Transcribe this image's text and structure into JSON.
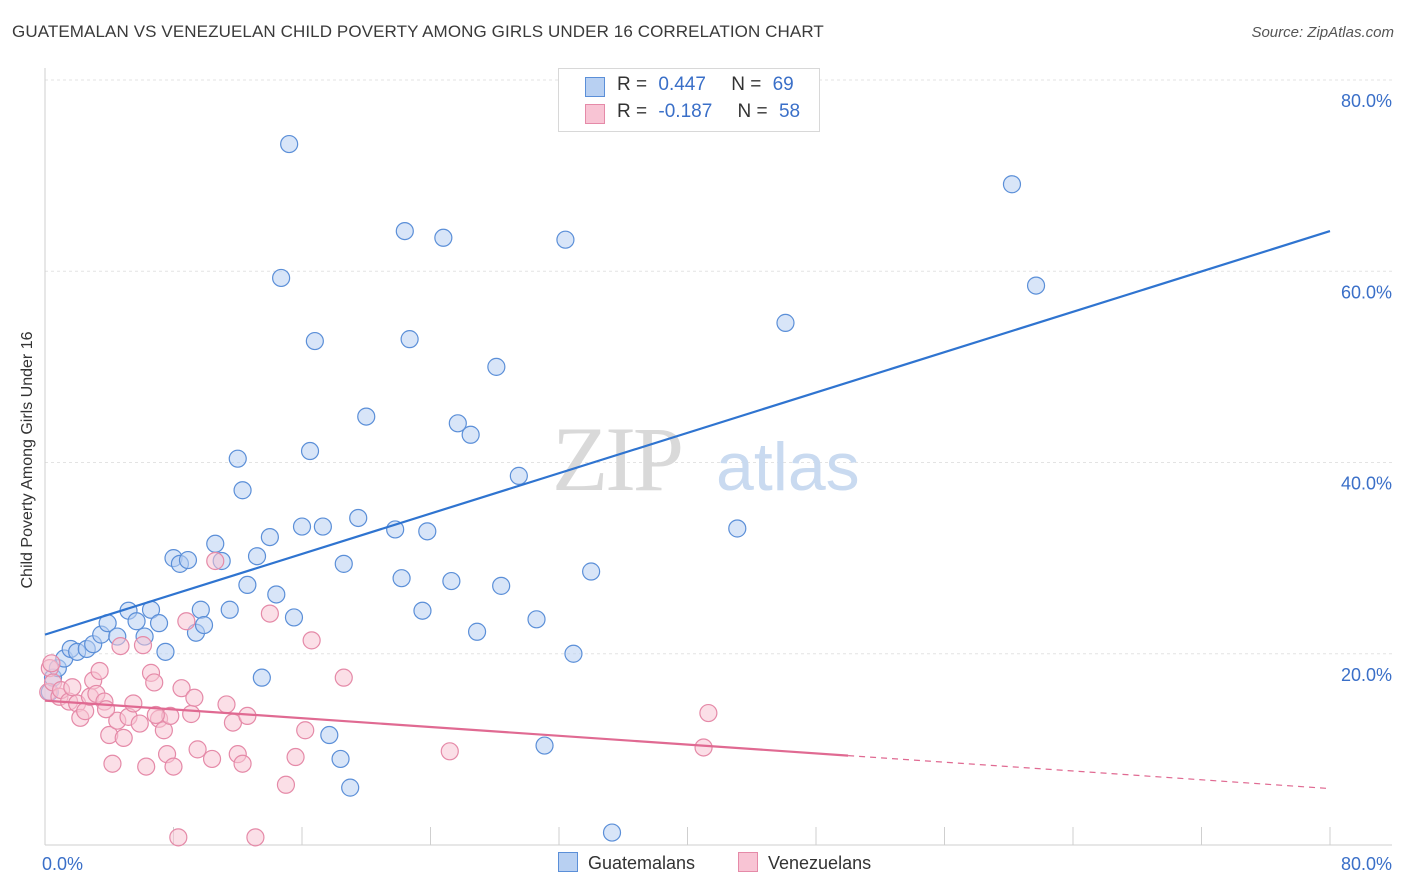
{
  "title": "GUATEMALAN VS VENEZUELAN CHILD POVERTY AMONG GIRLS UNDER 16 CORRELATION CHART",
  "source": "Source: ZipAtlas.com",
  "watermark": {
    "zip": "ZIP",
    "atlas": "atlas"
  },
  "colors": {
    "blue_fill": "#b8d0f2",
    "blue_stroke": "#5b8fd8",
    "blue_line": "#2f74d0",
    "pink_fill": "#f8c4d4",
    "pink_stroke": "#e58aa8",
    "pink_line": "#e06a92",
    "grid": "#e3e3e3",
    "axis_text": "#3a6fc8"
  },
  "stats": [
    {
      "r_label": "R =",
      "r_value": "0.447",
      "n_label": "N =",
      "n_value": "69"
    },
    {
      "r_label": "R =",
      "r_value": "-0.187",
      "n_label": "N =",
      "n_value": "58"
    }
  ],
  "chart_data": {
    "type": "scatter",
    "ylabel": "Child Poverty Among Girls Under 16",
    "xlim": [
      0,
      80
    ],
    "ylim": [
      0,
      80
    ],
    "x_tick_labels": [
      "0.0%",
      "80.0%"
    ],
    "y_ticks": [
      20,
      40,
      60,
      80
    ],
    "y_tick_labels": [
      "20.0%",
      "40.0%",
      "60.0%",
      "80.0%"
    ],
    "grid": true,
    "legend_position": "bottom",
    "series": [
      {
        "name": "Guatemalans",
        "color": "#5b8fd8",
        "trend": {
          "x": [
            0,
            80
          ],
          "y": [
            22.0,
            64.2
          ],
          "dashed_from": null
        },
        "points": [
          [
            0.3,
            16
          ],
          [
            0.5,
            17.5
          ],
          [
            0.8,
            18.5
          ],
          [
            1.2,
            19.5
          ],
          [
            1.6,
            20.5
          ],
          [
            2.0,
            20.2
          ],
          [
            2.6,
            20.5
          ],
          [
            3.0,
            21.0
          ],
          [
            3.5,
            22.0
          ],
          [
            3.9,
            23.2
          ],
          [
            4.5,
            21.8
          ],
          [
            5.2,
            24.5
          ],
          [
            5.7,
            23.4
          ],
          [
            6.2,
            21.8
          ],
          [
            6.6,
            24.6
          ],
          [
            7.1,
            23.2
          ],
          [
            7.5,
            20.2
          ],
          [
            8.0,
            30.0
          ],
          [
            8.4,
            29.4
          ],
          [
            8.9,
            29.8
          ],
          [
            9.4,
            22.2
          ],
          [
            9.7,
            24.6
          ],
          [
            9.9,
            23.0
          ],
          [
            10.6,
            31.5
          ],
          [
            11.0,
            29.7
          ],
          [
            11.5,
            24.6
          ],
          [
            12.0,
            40.4
          ],
          [
            12.3,
            37.1
          ],
          [
            12.6,
            27.2
          ],
          [
            13.2,
            30.2
          ],
          [
            13.5,
            17.5
          ],
          [
            14.0,
            32.2
          ],
          [
            14.4,
            26.2
          ],
          [
            14.7,
            59.3
          ],
          [
            15.2,
            73.3
          ],
          [
            15.5,
            23.8
          ],
          [
            16.0,
            33.3
          ],
          [
            16.5,
            41.2
          ],
          [
            16.8,
            52.7
          ],
          [
            17.3,
            33.3
          ],
          [
            17.7,
            11.5
          ],
          [
            18.4,
            9.0
          ],
          [
            18.6,
            29.4
          ],
          [
            19.0,
            6.0
          ],
          [
            19.5,
            34.2
          ],
          [
            20.0,
            44.8
          ],
          [
            21.8,
            33.0
          ],
          [
            22.2,
            27.9
          ],
          [
            22.4,
            64.2
          ],
          [
            22.7,
            52.9
          ],
          [
            23.5,
            24.5
          ],
          [
            23.8,
            32.8
          ],
          [
            24.8,
            63.5
          ],
          [
            25.3,
            27.6
          ],
          [
            25.7,
            44.1
          ],
          [
            26.5,
            42.9
          ],
          [
            26.9,
            22.3
          ],
          [
            28.1,
            50.0
          ],
          [
            28.4,
            27.1
          ],
          [
            29.5,
            38.6
          ],
          [
            30.6,
            23.6
          ],
          [
            31.1,
            10.4
          ],
          [
            32.4,
            63.3
          ],
          [
            32.9,
            20.0
          ],
          [
            34.0,
            28.6
          ],
          [
            35.3,
            1.3
          ],
          [
            43.1,
            33.1
          ],
          [
            46.1,
            54.6
          ],
          [
            60.2,
            69.1
          ],
          [
            61.7,
            58.5
          ]
        ]
      },
      {
        "name": "Venezuelans",
        "color": "#e58aa8",
        "trend": {
          "x": [
            0,
            80
          ],
          "y": [
            15.1,
            5.9
          ],
          "dashed_from": 50
        },
        "points": [
          [
            0.2,
            16.0
          ],
          [
            0.3,
            18.5
          ],
          [
            0.4,
            19.0
          ],
          [
            0.5,
            17.0
          ],
          [
            0.9,
            15.5
          ],
          [
            1.0,
            16.2
          ],
          [
            1.5,
            15.0
          ],
          [
            1.7,
            16.5
          ],
          [
            2.0,
            14.8
          ],
          [
            2.2,
            13.3
          ],
          [
            2.5,
            14.0
          ],
          [
            2.8,
            15.5
          ],
          [
            3.0,
            17.2
          ],
          [
            3.2,
            15.8
          ],
          [
            3.4,
            18.2
          ],
          [
            3.7,
            15.0
          ],
          [
            4.0,
            11.5
          ],
          [
            4.2,
            8.5
          ],
          [
            4.5,
            13.0
          ],
          [
            4.7,
            20.8
          ],
          [
            4.9,
            11.2
          ],
          [
            5.2,
            13.4
          ],
          [
            5.5,
            14.8
          ],
          [
            5.9,
            12.7
          ],
          [
            6.1,
            20.9
          ],
          [
            6.3,
            8.2
          ],
          [
            6.6,
            18.0
          ],
          [
            6.8,
            17.0
          ],
          [
            7.1,
            13.2
          ],
          [
            7.4,
            12.0
          ],
          [
            7.6,
            9.5
          ],
          [
            7.8,
            13.5
          ],
          [
            8.0,
            8.2
          ],
          [
            8.3,
            0.8
          ],
          [
            8.5,
            16.4
          ],
          [
            8.8,
            23.4
          ],
          [
            9.1,
            13.7
          ],
          [
            9.3,
            15.4
          ],
          [
            9.5,
            10.0
          ],
          [
            10.4,
            9.0
          ],
          [
            10.6,
            29.7
          ],
          [
            11.3,
            14.7
          ],
          [
            11.7,
            12.8
          ],
          [
            12.0,
            9.5
          ],
          [
            12.3,
            8.5
          ],
          [
            12.6,
            13.5
          ],
          [
            13.1,
            0.8
          ],
          [
            14.0,
            24.2
          ],
          [
            15.0,
            6.3
          ],
          [
            15.6,
            9.2
          ],
          [
            16.2,
            12.0
          ],
          [
            16.6,
            21.4
          ],
          [
            18.6,
            17.5
          ],
          [
            25.2,
            9.8
          ],
          [
            41.0,
            10.2
          ],
          [
            41.3,
            13.8
          ],
          [
            3.8,
            14.2
          ],
          [
            6.9,
            13.6
          ]
        ]
      }
    ]
  }
}
